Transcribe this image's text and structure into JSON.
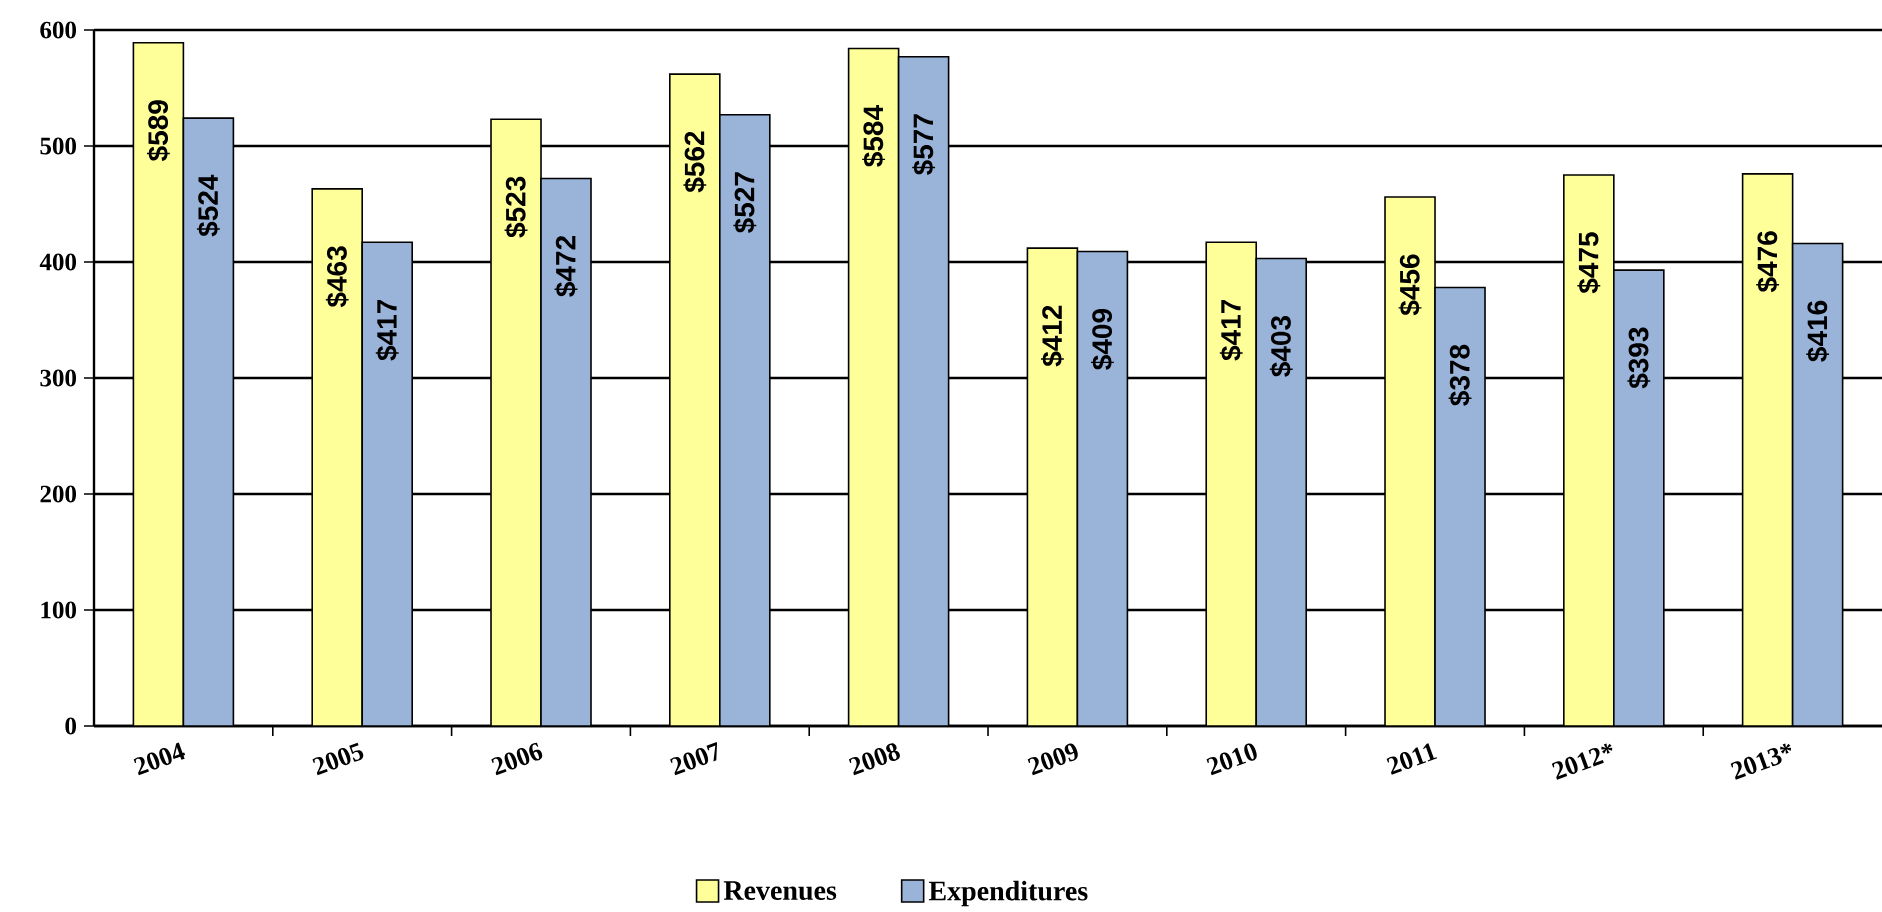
{
  "chart_data": {
    "type": "bar",
    "categories": [
      "2004",
      "2005",
      "2006",
      "2007",
      "2008",
      "2009",
      "2010",
      "2011",
      "2012*",
      "2013*"
    ],
    "series": [
      {
        "name": "Revenues",
        "color": "#ffff99",
        "values": [
          589,
          463,
          523,
          562,
          584,
          412,
          417,
          456,
          475,
          476
        ],
        "value_labels": [
          "$589",
          "$463",
          "$523",
          "$562",
          "$584",
          "$412",
          "$417",
          "$456",
          "$475",
          "$476"
        ]
      },
      {
        "name": "Expenditures",
        "color": "#99b3d9",
        "values": [
          524,
          417,
          472,
          527,
          577,
          409,
          403,
          378,
          393,
          416
        ],
        "value_labels": [
          "$524",
          "$417",
          "$472",
          "$527",
          "$577",
          "$409",
          "$403",
          "$378",
          "$393",
          "$416"
        ]
      }
    ],
    "ylim": [
      0,
      600
    ],
    "yticks": [
      0,
      100,
      200,
      300,
      400,
      500,
      600
    ],
    "grid": "y",
    "legend": "bottom"
  }
}
